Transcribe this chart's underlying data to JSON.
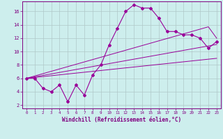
{
  "xlabel": "Windchill (Refroidissement éolien,°C)",
  "x": [
    0,
    1,
    2,
    3,
    4,
    5,
    6,
    7,
    8,
    9,
    10,
    11,
    12,
    13,
    14,
    15,
    16,
    17,
    18,
    19,
    20,
    21,
    22,
    23
  ],
  "y_main": [
    6,
    6,
    4.5,
    4,
    5,
    2.5,
    5,
    3.5,
    6.5,
    8,
    11,
    13.5,
    16,
    17,
    16.5,
    16.5,
    15,
    13,
    13,
    12.5,
    12.5,
    12,
    10.5,
    11.5
  ],
  "y_reg1": [
    6.0,
    6.13,
    6.26,
    6.39,
    6.52,
    6.65,
    6.78,
    6.91,
    7.04,
    7.17,
    7.3,
    7.43,
    7.56,
    7.69,
    7.82,
    7.95,
    8.08,
    8.21,
    8.34,
    8.47,
    8.6,
    8.73,
    8.86,
    8.99
  ],
  "y_reg2": [
    6.0,
    6.22,
    6.44,
    6.66,
    6.88,
    7.1,
    7.32,
    7.54,
    7.76,
    7.98,
    8.2,
    8.42,
    8.64,
    8.86,
    9.08,
    9.3,
    9.52,
    9.74,
    9.96,
    10.18,
    10.4,
    10.62,
    10.84,
    11.06
  ],
  "y_reg3": [
    6.0,
    6.35,
    6.7,
    7.05,
    7.4,
    7.75,
    8.1,
    8.45,
    8.8,
    9.15,
    9.5,
    9.85,
    10.2,
    10.55,
    10.9,
    11.25,
    11.6,
    11.95,
    12.3,
    12.65,
    13.0,
    13.35,
    13.7,
    12.0
  ],
  "line_color": "#990099",
  "bg_color": "#cdeeed",
  "grid_color": "#b0c8c8",
  "axis_color": "#800080",
  "ylim": [
    1.5,
    17.5
  ],
  "xlim": [
    -0.5,
    23.5
  ],
  "yticks": [
    2,
    4,
    6,
    8,
    10,
    12,
    14,
    16
  ],
  "xticks": [
    0,
    1,
    2,
    3,
    4,
    5,
    6,
    7,
    8,
    9,
    10,
    11,
    12,
    13,
    14,
    15,
    16,
    17,
    18,
    19,
    20,
    21,
    22,
    23
  ]
}
